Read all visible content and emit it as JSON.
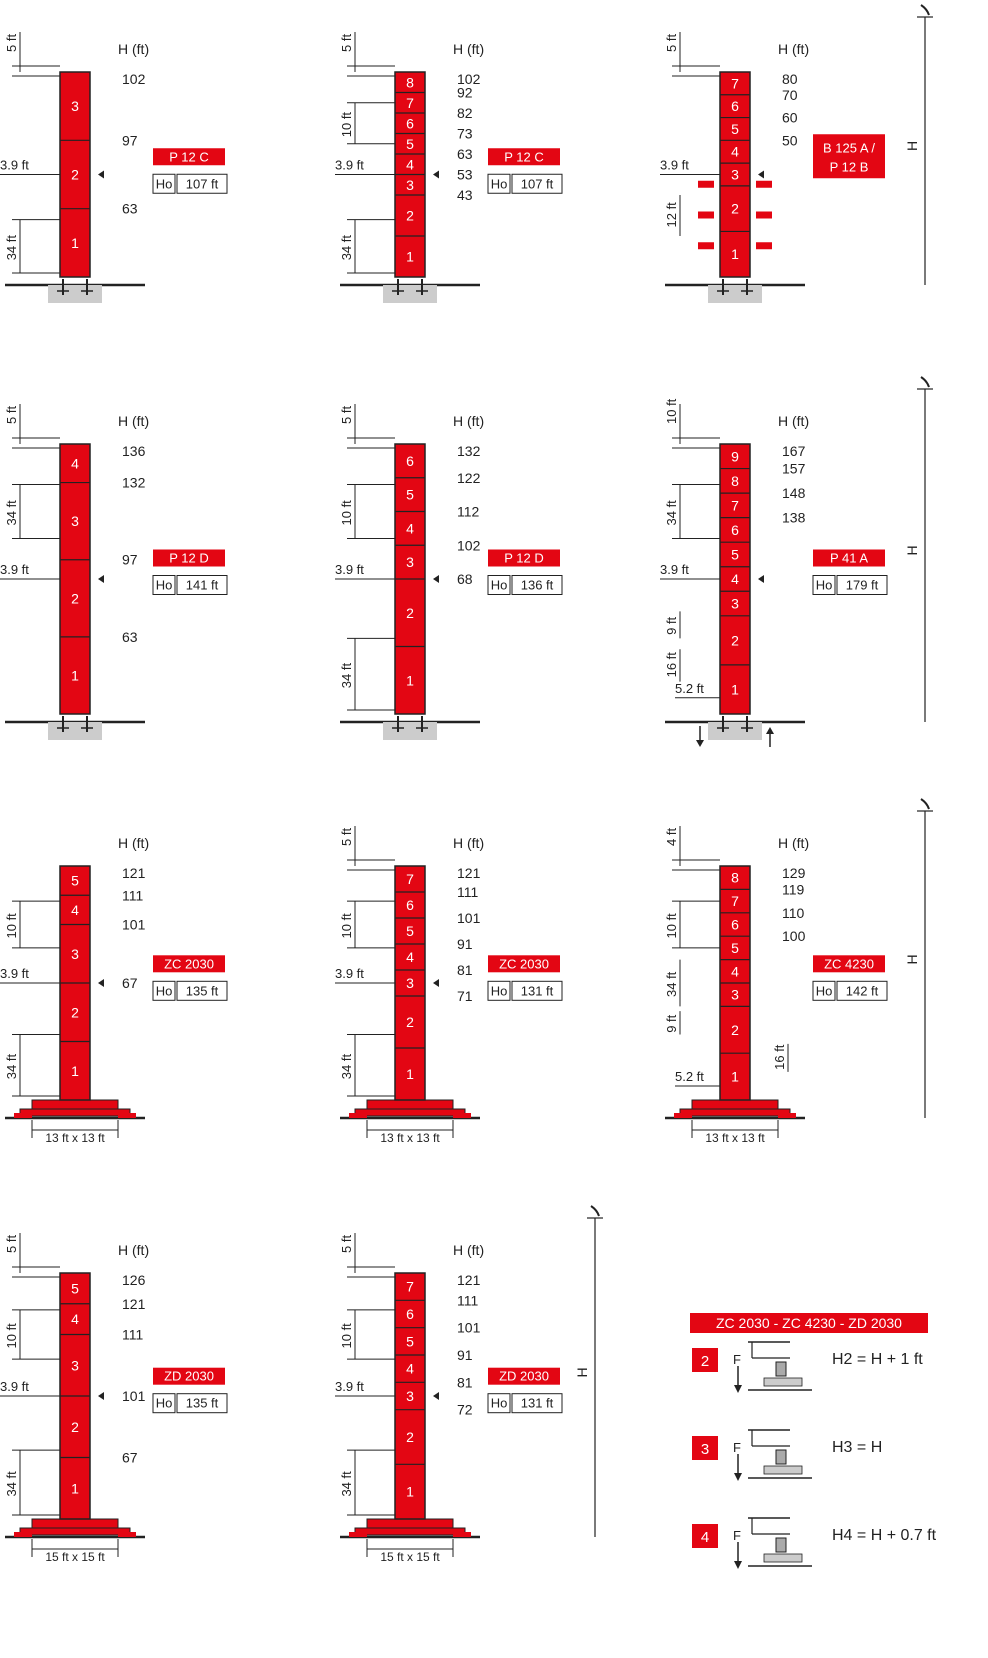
{
  "colors": {
    "tower": "#e30613",
    "label": "#e30613",
    "base": "#cccccc",
    "line": "#222222"
  },
  "towers": [
    {
      "col": 0,
      "row": 0,
      "foundation": "pad",
      "h_label": "H (ft)",
      "top_dim": "5 ft",
      "mid_dim": "3.9 ft",
      "bottom_dim": "34 ft",
      "sections": [
        {
          "n": "3",
          "h": "97"
        },
        {
          "n": "2",
          "h": "63"
        },
        {
          "n": "1",
          "h": ""
        }
      ],
      "top_height": "102",
      "model": "P 12 C",
      "ho_label": "Ho",
      "ho_value": "107 ft"
    },
    {
      "col": 1,
      "row": 0,
      "foundation": "pad",
      "h_label": "H (ft)",
      "top_dim": "5 ft",
      "upper_dim": "10 ft",
      "mid_dim": "3.9 ft",
      "bottom_dim": "34 ft",
      "sections": [
        {
          "n": "8",
          "h": "92"
        },
        {
          "n": "7",
          "h": "82"
        },
        {
          "n": "6",
          "h": "73"
        },
        {
          "n": "5",
          "h": "63"
        },
        {
          "n": "4",
          "h": "53"
        },
        {
          "n": "3",
          "h": "43"
        },
        {
          "n": "2",
          "h": ""
        },
        {
          "n": "1",
          "h": ""
        }
      ],
      "top_height": "102",
      "model": "P 12 C",
      "ho_label": "Ho",
      "ho_value": "107 ft"
    },
    {
      "col": 2,
      "row": 0,
      "foundation": "climbing",
      "h_label": "H (ft)",
      "top_dim": "5 ft",
      "mid_dim": "3.9 ft",
      "lower_dim": "12 ft",
      "side_label": "H",
      "sections": [
        {
          "n": "7",
          "h": "70"
        },
        {
          "n": "6",
          "h": "60"
        },
        {
          "n": "5",
          "h": "50"
        },
        {
          "n": "4",
          "h": ""
        },
        {
          "n": "3",
          "h": ""
        },
        {
          "n": "2",
          "h": ""
        },
        {
          "n": "1",
          "h": ""
        }
      ],
      "top_height": "80",
      "model": "B 125 A / P 12 B",
      "model_line1": "B 125 A /",
      "model_line2": "P 12 B"
    },
    {
      "col": 0,
      "row": 1,
      "foundation": "pad",
      "h_label": "H (ft)",
      "top_dim": "5 ft",
      "upper_dim": "34 ft",
      "mid_dim": "3.9 ft",
      "sections": [
        {
          "n": "4",
          "h": "132"
        },
        {
          "n": "3",
          "h": "97"
        },
        {
          "n": "2",
          "h": "63"
        },
        {
          "n": "1",
          "h": ""
        }
      ],
      "top_height": "136",
      "model": "P 12 D",
      "ho_label": "Ho",
      "ho_value": "141 ft"
    },
    {
      "col": 1,
      "row": 1,
      "foundation": "pad",
      "h_label": "H (ft)",
      "top_dim": "5 ft",
      "upper_dim": "10 ft",
      "mid_dim": "3.9 ft",
      "bottom_dim": "34 ft",
      "sections": [
        {
          "n": "6",
          "h": "122"
        },
        {
          "n": "5",
          "h": "112"
        },
        {
          "n": "4",
          "h": "102"
        },
        {
          "n": "3",
          "h": "68"
        },
        {
          "n": "2",
          "h": ""
        },
        {
          "n": "1",
          "h": ""
        }
      ],
      "top_height": "132",
      "model": "P 12 D",
      "ho_label": "Ho",
      "ho_value": "136 ft"
    },
    {
      "col": 2,
      "row": 1,
      "foundation": "pad-arrows",
      "h_label": "H (ft)",
      "top_dim": "10 ft",
      "upper_dim": "34 ft",
      "mid_dim": "3.9 ft",
      "dim4": "9 ft",
      "dim5": "16 ft",
      "dim6": "5.2 ft",
      "side_label": "H",
      "sections": [
        {
          "n": "9",
          "h": "157"
        },
        {
          "n": "8",
          "h": "148"
        },
        {
          "n": "7",
          "h": "138"
        },
        {
          "n": "6",
          "h": ""
        },
        {
          "n": "5",
          "h": ""
        },
        {
          "n": "4",
          "h": ""
        },
        {
          "n": "3",
          "h": ""
        },
        {
          "n": "2",
          "h": ""
        },
        {
          "n": "1",
          "h": ""
        }
      ],
      "top_height": "167",
      "model": "P 41 A",
      "ho_label": "Ho",
      "ho_value": "179 ft"
    },
    {
      "col": 0,
      "row": 2,
      "foundation": "chassis",
      "h_label": "H (ft)",
      "upper_dim": "10 ft",
      "mid_dim": "3.9 ft",
      "bottom_dim": "34 ft",
      "base_dim": "13 ft x 13 ft",
      "sections": [
        {
          "n": "5",
          "h": "111"
        },
        {
          "n": "4",
          "h": "101"
        },
        {
          "n": "3",
          "h": "67"
        },
        {
          "n": "2",
          "h": ""
        },
        {
          "n": "1",
          "h": ""
        }
      ],
      "top_height": "121",
      "model": "ZC 2030",
      "ho_label": "Ho",
      "ho_value": "135 ft"
    },
    {
      "col": 1,
      "row": 2,
      "foundation": "chassis",
      "h_label": "H (ft)",
      "top_dim": "5 ft",
      "upper_dim": "10 ft",
      "mid_dim": "3.9 ft",
      "bottom_dim": "34 ft",
      "base_dim": "13 ft x 13 ft",
      "sections": [
        {
          "n": "7",
          "h": "111"
        },
        {
          "n": "6",
          "h": "101"
        },
        {
          "n": "5",
          "h": "91"
        },
        {
          "n": "4",
          "h": "81"
        },
        {
          "n": "3",
          "h": "71"
        },
        {
          "n": "2",
          "h": ""
        },
        {
          "n": "1",
          "h": ""
        }
      ],
      "top_height": "121",
      "model": "ZC 2030",
      "ho_label": "Ho",
      "ho_value": "131 ft"
    },
    {
      "col": 2,
      "row": 2,
      "foundation": "chassis",
      "h_label": "H (ft)",
      "top_dim": "4 ft",
      "upper_dim": "10 ft",
      "dim2": "34 ft",
      "dim4": "9 ft",
      "dim5": "16 ft",
      "dim6": "5.2 ft",
      "base_dim": "13 ft x 13 ft",
      "side_label": "H",
      "sections": [
        {
          "n": "8",
          "h": "119"
        },
        {
          "n": "7",
          "h": "110"
        },
        {
          "n": "6",
          "h": "100"
        },
        {
          "n": "5",
          "h": ""
        },
        {
          "n": "4",
          "h": ""
        },
        {
          "n": "3",
          "h": ""
        },
        {
          "n": "2",
          "h": ""
        },
        {
          "n": "1",
          "h": ""
        }
      ],
      "top_height": "129",
      "model": "ZC 4230",
      "ho_label": "Ho",
      "ho_value": "142 ft"
    },
    {
      "col": 0,
      "row": 3,
      "foundation": "chassis",
      "h_label": "H (ft)",
      "top_dim": "5 ft",
      "upper_dim": "10 ft",
      "mid_dim": "3.9 ft",
      "bottom_dim": "34 ft",
      "base_dim": "15 ft x 15 ft",
      "sections": [
        {
          "n": "5",
          "h": "121"
        },
        {
          "n": "4",
          "h": "111"
        },
        {
          "n": "3",
          "h": "101"
        },
        {
          "n": "2",
          "h": "67"
        },
        {
          "n": "1",
          "h": ""
        }
      ],
      "top_height": "126",
      "model": "ZD 2030",
      "ho_label": "Ho",
      "ho_value": "135 ft"
    },
    {
      "col": 1,
      "row": 3,
      "foundation": "chassis",
      "h_label": "H (ft)",
      "top_dim": "5 ft",
      "upper_dim": "10 ft",
      "mid_dim": "3.9 ft",
      "bottom_dim": "34 ft",
      "base_dim": "15 ft x 15 ft",
      "side_label": "H",
      "sections": [
        {
          "n": "7",
          "h": "111"
        },
        {
          "n": "6",
          "h": "101"
        },
        {
          "n": "5",
          "h": "91"
        },
        {
          "n": "4",
          "h": "81"
        },
        {
          "n": "3",
          "h": "72"
        },
        {
          "n": "2",
          "h": ""
        },
        {
          "n": "1",
          "h": ""
        }
      ],
      "top_height": "121",
      "model": "ZD 2030",
      "ho_label": "Ho",
      "ho_value": "131 ft"
    }
  ],
  "legend": {
    "title": "ZC 2030 - ZC 4230 - ZD 2030",
    "items": [
      {
        "num": "2",
        "force": "F",
        "formula": "H2 = H + 1 ft"
      },
      {
        "num": "3",
        "force": "F",
        "formula": "H3 = H"
      },
      {
        "num": "4",
        "force": "F",
        "formula": "H4 = H + 0.7 ft"
      }
    ]
  }
}
